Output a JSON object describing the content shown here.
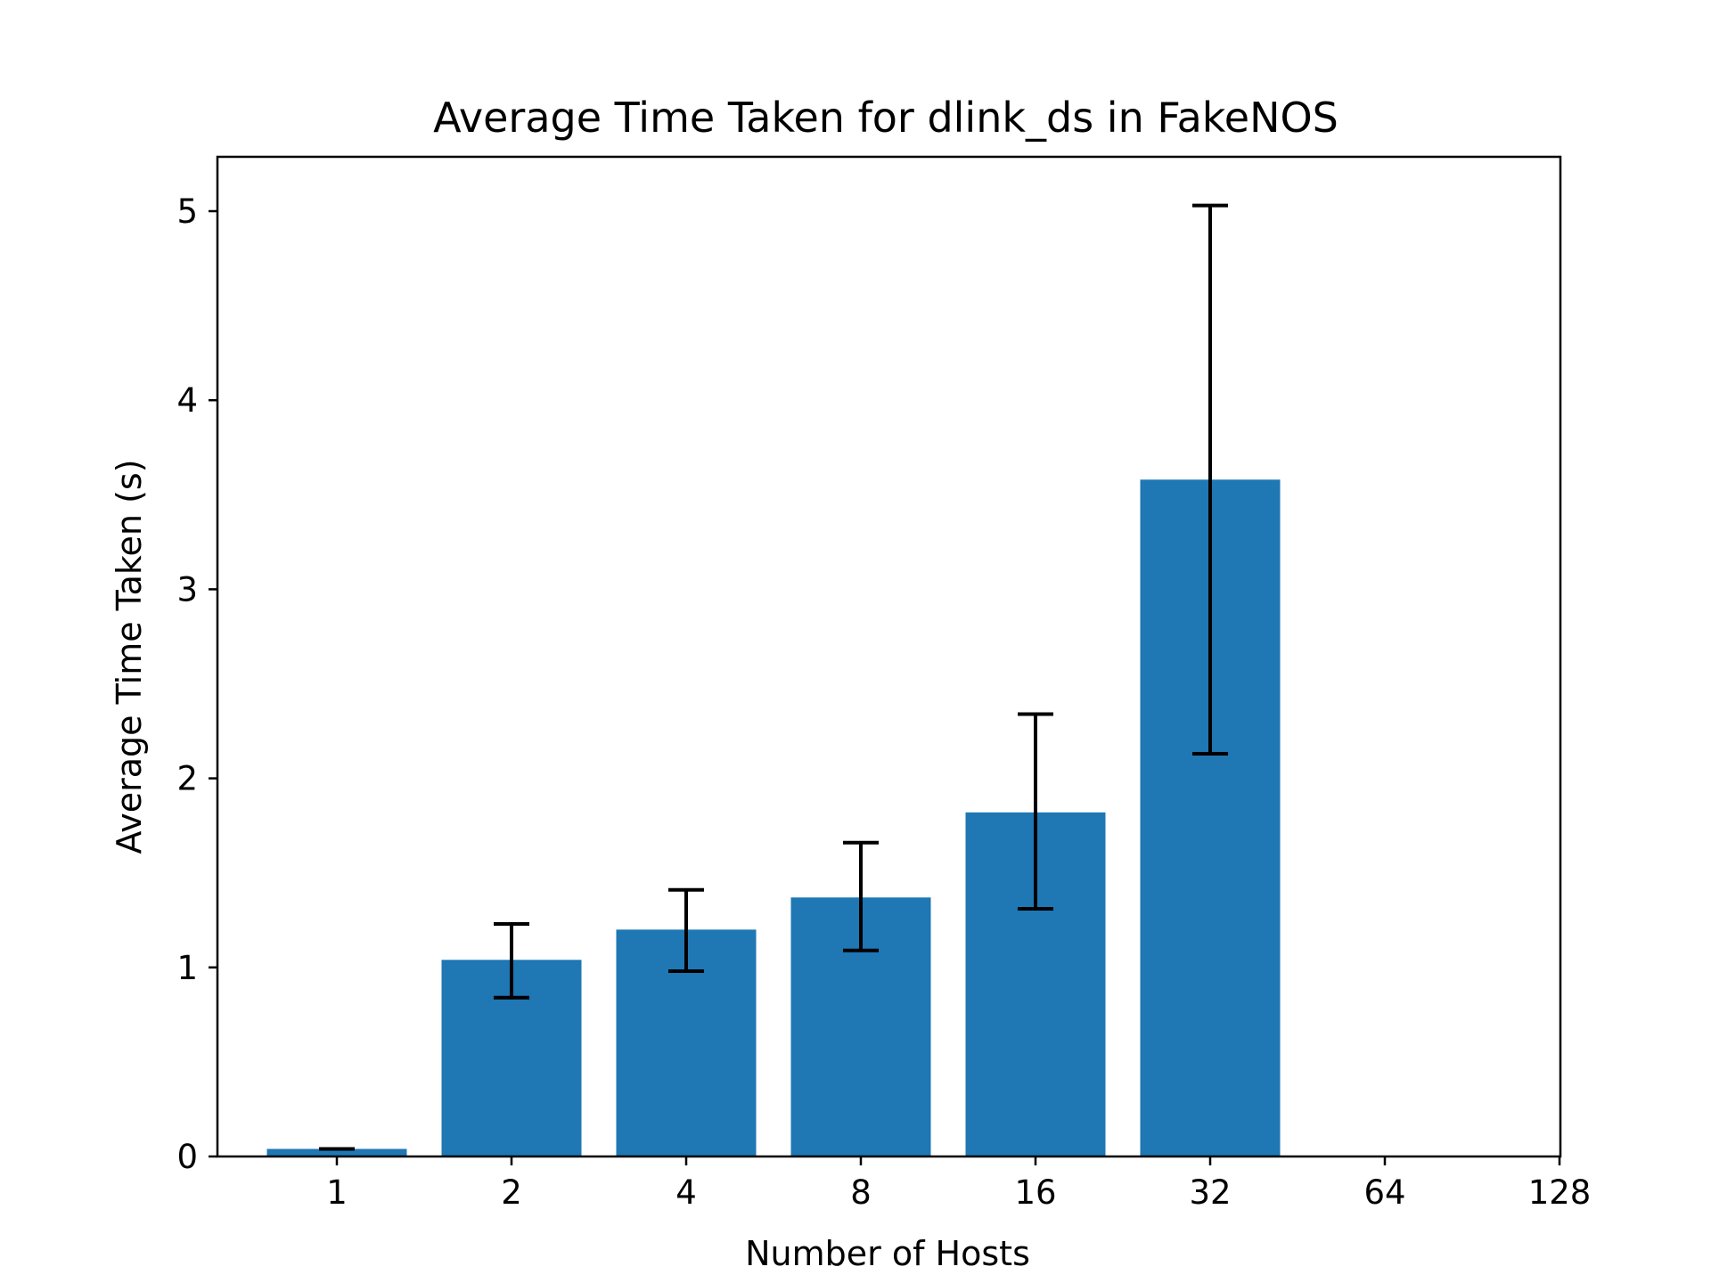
{
  "chart_data": {
    "type": "bar",
    "title": "Average Time Taken for dlink_ds in FakeNOS",
    "xlabel": "Number of Hosts",
    "ylabel": "Average Time Taken (s)",
    "categories": [
      "1",
      "2",
      "4",
      "8",
      "16",
      "32",
      "64",
      "128"
    ],
    "values": [
      0.04,
      1.04,
      1.2,
      1.37,
      1.82,
      3.58,
      null,
      null
    ],
    "error_low": [
      0.04,
      0.84,
      0.98,
      1.09,
      1.31,
      2.13,
      null,
      null
    ],
    "error_high": [
      0.04,
      1.23,
      1.41,
      1.66,
      2.34,
      5.03,
      null,
      null
    ],
    "yticks": [
      "0",
      "1",
      "2",
      "3",
      "4",
      "5"
    ],
    "ylim": [
      0,
      5.3
    ],
    "grid": false,
    "bar_color": "#1f77b4",
    "error_color": "#000000"
  }
}
